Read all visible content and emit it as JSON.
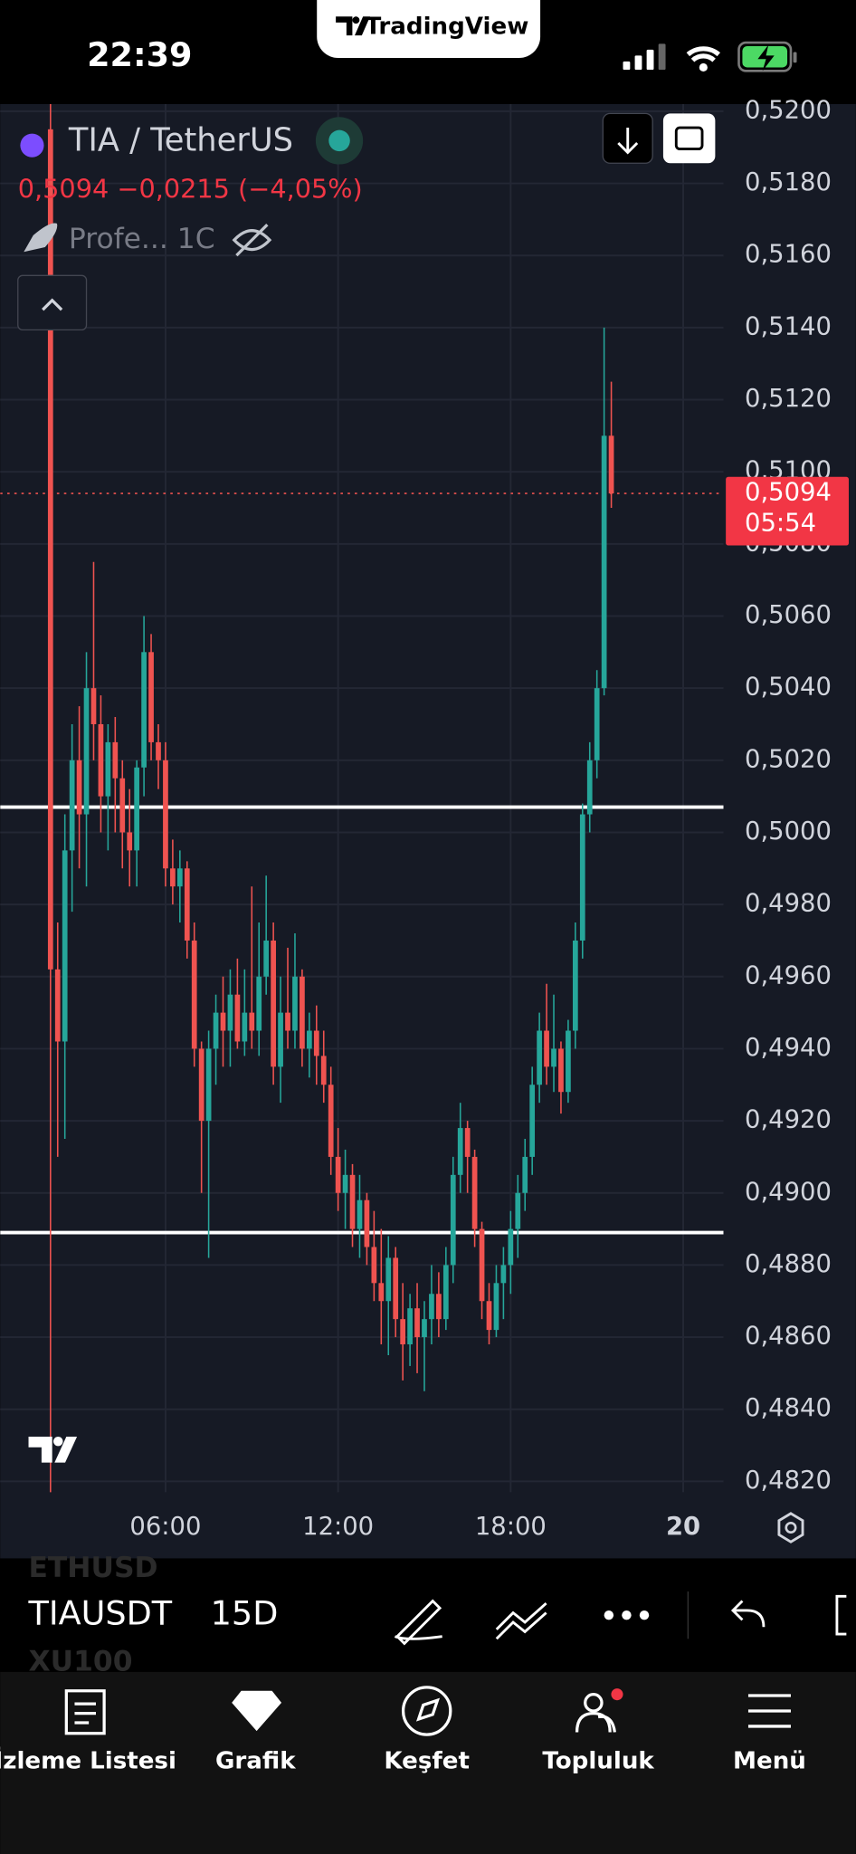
{
  "status_bar": {
    "time": "22:39"
  },
  "app_badge": "TradingView",
  "header": {
    "symbol": "TIA / TetherUS",
    "price_change": "0,5094 −0,0215 (−4,05%)",
    "indicator": "Profe... 1C"
  },
  "chart_data": {
    "type": "candlestick",
    "x": [
      2,
      2.25,
      2.5,
      2.75,
      3,
      3.25,
      3.5,
      3.75,
      4,
      4.25,
      4.5,
      4.75,
      5,
      5.25,
      5.5,
      5.75,
      6,
      6.25,
      6.5,
      6.75,
      7,
      7.25,
      7.5,
      7.75,
      8,
      8.25,
      8.5,
      8.75,
      9,
      9.25,
      9.5,
      9.75,
      10,
      10.25,
      10.5,
      10.75,
      11,
      11.25,
      11.5,
      11.75,
      12,
      12.25,
      12.5,
      12.75,
      13,
      13.25,
      13.5,
      13.75,
      14,
      14.25,
      14.5,
      14.75,
      15,
      15.25,
      15.5,
      15.75,
      16,
      16.25,
      16.5,
      16.75,
      17,
      17.25,
      17.5,
      17.75,
      18,
      18.25,
      18.5,
      18.75,
      19,
      19.25,
      19.5,
      19.75,
      20,
      20.25,
      20.5,
      20.75,
      21,
      21.25,
      21.5
    ],
    "open": [
      0.5195,
      0.4962,
      0.4942,
      0.4995,
      0.502,
      0.5005,
      0.504,
      0.503,
      0.501,
      0.5025,
      0.5015,
      0.5,
      0.4995,
      0.5018,
      0.505,
      0.5025,
      0.502,
      0.499,
      0.4985,
      0.499,
      0.497,
      0.494,
      0.492,
      0.494,
      0.495,
      0.4945,
      0.4955,
      0.4942,
      0.495,
      0.4945,
      0.496,
      0.497,
      0.4935,
      0.495,
      0.4945,
      0.496,
      0.494,
      0.4945,
      0.4938,
      0.493,
      0.491,
      0.49,
      0.4905,
      0.489,
      0.4898,
      0.4885,
      0.4875,
      0.487,
      0.4882,
      0.4865,
      0.4858,
      0.4868,
      0.486,
      0.4865,
      0.4872,
      0.4865,
      0.488,
      0.4905,
      0.4918,
      0.491,
      0.489,
      0.487,
      0.4862,
      0.4875,
      0.488,
      0.489,
      0.49,
      0.491,
      0.493,
      0.4945,
      0.4935,
      0.494,
      0.4928,
      0.4945,
      0.497,
      0.5005,
      0.502,
      0.504,
      0.511
    ],
    "high": [
      0.5202,
      0.4975,
      0.5005,
      0.503,
      0.5035,
      0.505,
      0.5075,
      0.5038,
      0.503,
      0.5032,
      0.502,
      0.5012,
      0.502,
      0.506,
      0.5055,
      0.503,
      0.5025,
      0.4998,
      0.4995,
      0.4992,
      0.4975,
      0.4942,
      0.4945,
      0.4955,
      0.496,
      0.4962,
      0.4965,
      0.4962,
      0.4985,
      0.4975,
      0.4988,
      0.4975,
      0.496,
      0.4968,
      0.4972,
      0.4962,
      0.495,
      0.4952,
      0.4945,
      0.4935,
      0.4918,
      0.4912,
      0.4908,
      0.4905,
      0.49,
      0.4895,
      0.489,
      0.4888,
      0.4885,
      0.4875,
      0.4872,
      0.4875,
      0.487,
      0.488,
      0.4878,
      0.4885,
      0.491,
      0.4925,
      0.492,
      0.4912,
      0.4892,
      0.4875,
      0.488,
      0.4885,
      0.4895,
      0.4905,
      0.4915,
      0.4935,
      0.495,
      0.4958,
      0.4955,
      0.4942,
      0.4948,
      0.4975,
      0.5008,
      0.5025,
      0.5045,
      0.514,
      0.5125
    ],
    "low": [
      0.4816,
      0.491,
      0.4915,
      0.4978,
      0.499,
      0.4985,
      0.502,
      0.5,
      0.4995,
      0.5,
      0.499,
      0.4985,
      0.4985,
      0.501,
      0.502,
      0.5012,
      0.4985,
      0.498,
      0.4975,
      0.4965,
      0.4935,
      0.49,
      0.4882,
      0.493,
      0.4935,
      0.4935,
      0.494,
      0.4938,
      0.494,
      0.4938,
      0.4955,
      0.493,
      0.4925,
      0.494,
      0.494,
      0.4935,
      0.4932,
      0.493,
      0.4925,
      0.4905,
      0.4895,
      0.489,
      0.4885,
      0.4882,
      0.488,
      0.487,
      0.4858,
      0.4855,
      0.486,
      0.4848,
      0.4852,
      0.485,
      0.4845,
      0.4858,
      0.486,
      0.4862,
      0.4875,
      0.49,
      0.49,
      0.4885,
      0.4865,
      0.4858,
      0.486,
      0.4865,
      0.4872,
      0.4882,
      0.4895,
      0.4905,
      0.4925,
      0.493,
      0.4928,
      0.4922,
      0.4925,
      0.494,
      0.4965,
      0.5,
      0.5015,
      0.5038,
      0.509
    ],
    "close": [
      0.4962,
      0.4942,
      0.4995,
      0.502,
      0.5005,
      0.504,
      0.503,
      0.501,
      0.5025,
      0.5015,
      0.5,
      0.4995,
      0.5018,
      0.505,
      0.5025,
      0.502,
      0.499,
      0.4985,
      0.499,
      0.497,
      0.494,
      0.492,
      0.494,
      0.495,
      0.4945,
      0.4955,
      0.4942,
      0.495,
      0.4945,
      0.496,
      0.497,
      0.4935,
      0.495,
      0.4945,
      0.496,
      0.494,
      0.4945,
      0.4938,
      0.493,
      0.491,
      0.49,
      0.4905,
      0.489,
      0.4898,
      0.4885,
      0.4875,
      0.487,
      0.4882,
      0.4865,
      0.4858,
      0.4868,
      0.486,
      0.4865,
      0.4872,
      0.4865,
      0.488,
      0.4905,
      0.4918,
      0.491,
      0.489,
      0.487,
      0.4862,
      0.4875,
      0.488,
      0.489,
      0.49,
      0.491,
      0.493,
      0.4945,
      0.4935,
      0.494,
      0.4928,
      0.4945,
      0.497,
      0.5005,
      0.502,
      0.504,
      0.511,
      0.5094
    ],
    "up_color": "#26a69a",
    "down_color": "#ef5350",
    "xlim": [
      0.25,
      25.4
    ],
    "xticks": [
      {
        "value": 6,
        "label": "06:00"
      },
      {
        "value": 12,
        "label": "12:00"
      },
      {
        "value": 18,
        "label": "18:00"
      },
      {
        "value": 24,
        "label": "20"
      }
    ],
    "ylim": [
      0.4817,
      0.5202
    ],
    "yticks": [
      {
        "value": 0.482,
        "label": "0,4820"
      },
      {
        "value": 0.484,
        "label": "0,4840"
      },
      {
        "value": 0.486,
        "label": "0,4860"
      },
      {
        "value": 0.488,
        "label": "0,4880"
      },
      {
        "value": 0.49,
        "label": "0,4900"
      },
      {
        "value": 0.492,
        "label": "0,4920"
      },
      {
        "value": 0.494,
        "label": "0,4940"
      },
      {
        "value": 0.496,
        "label": "0,4960"
      },
      {
        "value": 0.498,
        "label": "0,4980"
      },
      {
        "value": 0.5,
        "label": "0,5000"
      },
      {
        "value": 0.502,
        "label": "0,5020"
      },
      {
        "value": 0.504,
        "label": "0,5040"
      },
      {
        "value": 0.506,
        "label": "0,5060"
      },
      {
        "value": 0.508,
        "label": "0,5080"
      },
      {
        "value": 0.51,
        "label": "0,5100"
      },
      {
        "value": 0.512,
        "label": "0,5120"
      },
      {
        "value": 0.514,
        "label": "0,5140"
      },
      {
        "value": 0.516,
        "label": "0,5160"
      },
      {
        "value": 0.518,
        "label": "0,5180"
      },
      {
        "value": 0.52,
        "label": "0,5200"
      }
    ],
    "grid": true,
    "hlines": [
      0.5007,
      0.4889
    ],
    "hline_color": "#ffffff",
    "last_price": {
      "value": 0.5094,
      "label": "0,5094"
    },
    "countdown": "05:54"
  },
  "toolbar": {
    "symbol": "TIAUSDT",
    "prev_symbol": "ETHUSD",
    "next_symbol": "XU100",
    "interval": "15D"
  },
  "nav": [
    "İzleme Listesi",
    "Grafik",
    "Keşfet",
    "Topluluk",
    "Menü"
  ]
}
